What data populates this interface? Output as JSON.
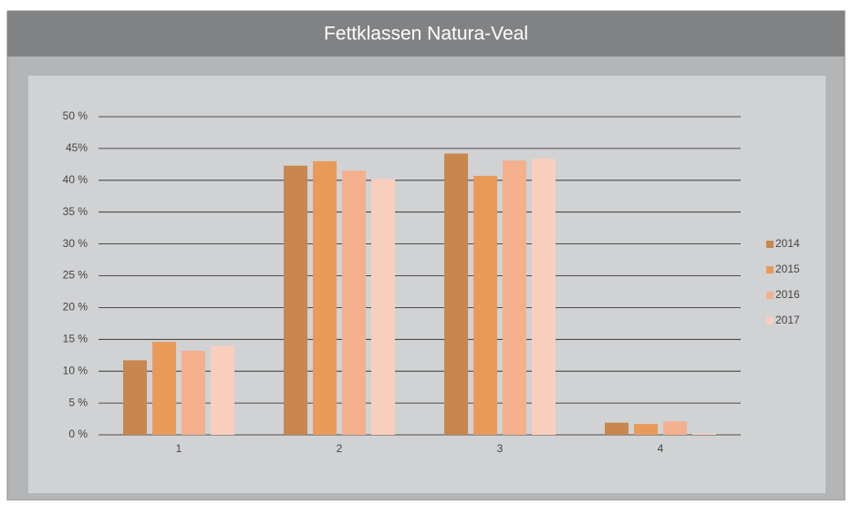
{
  "chart_data": {
    "type": "bar",
    "title": "Fettklassen Natura-Veal",
    "categories": [
      "1",
      "2",
      "3",
      "4"
    ],
    "series": [
      {
        "name": "2014",
        "color": "#c8874d",
        "values": [
          11.7,
          42.3,
          44.2,
          1.9
        ]
      },
      {
        "name": "2015",
        "color": "#e99a58",
        "values": [
          14.6,
          43.0,
          40.7,
          1.7
        ]
      },
      {
        "name": "2016",
        "color": "#f4b08c",
        "values": [
          13.2,
          41.5,
          43.1,
          2.1
        ]
      },
      {
        "name": "2017",
        "color": "#f8cfbd",
        "values": [
          14.0,
          40.2,
          43.4,
          0.2
        ]
      }
    ],
    "ylim": [
      0,
      50
    ],
    "yticks": [
      {
        "value": 0,
        "label": "0 %"
      },
      {
        "value": 5,
        "label": "5 %"
      },
      {
        "value": 10,
        "label": "10 %"
      },
      {
        "value": 15,
        "label": "15 %"
      },
      {
        "value": 20,
        "label": "20 %"
      },
      {
        "value": 25,
        "label": "25 %"
      },
      {
        "value": 30,
        "label": "30 %"
      },
      {
        "value": 35,
        "label": "35 %"
      },
      {
        "value": 40,
        "label": "40 %"
      },
      {
        "value": 45,
        "label": "45%"
      },
      {
        "value": 50,
        "label": "50 %"
      }
    ],
    "grid": true,
    "legend": "right"
  }
}
